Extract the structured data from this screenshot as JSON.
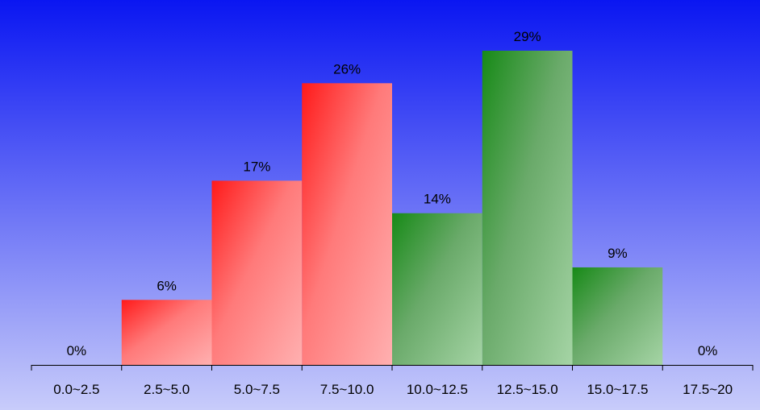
{
  "chart_data": {
    "type": "bar",
    "categories": [
      "0.0~2.5",
      "2.5~5.0",
      "5.0~7.5",
      "7.5~10.0",
      "10.0~12.5",
      "12.5~15.0",
      "15.0~17.5",
      "17.5~20"
    ],
    "values": [
      0,
      6,
      17,
      26,
      14,
      29,
      9,
      0
    ],
    "data_labels": [
      "0%",
      "6%",
      "17%",
      "26%",
      "14%",
      "29%",
      "9%",
      "0%"
    ],
    "value_unit": "%",
    "ylim": [
      0,
      30
    ],
    "title": "",
    "xlabel": "",
    "ylabel": "",
    "grid": false,
    "legend": "none",
    "bar_groups": [
      {
        "categories": [
          0,
          1,
          2,
          3
        ],
        "gradient_from": "#ff1a1a",
        "gradient_to": "#ffb0b0"
      },
      {
        "categories": [
          4,
          5,
          6,
          7
        ],
        "gradient_from": "#178a17",
        "gradient_to": "#a5d4a5"
      }
    ],
    "background_gradient": {
      "top": "#0a16f2",
      "bottom": "#c8ccfa"
    },
    "axis_color": "#000000",
    "text_color": "#000000"
  }
}
